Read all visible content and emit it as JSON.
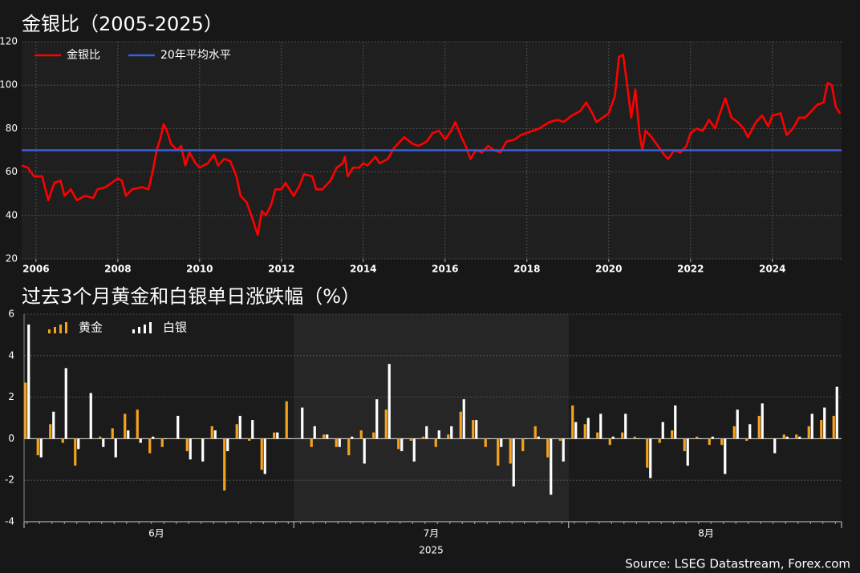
{
  "chart_data": [
    {
      "type": "line",
      "title": "金银比（2005-2025）",
      "x": [
        2005.65,
        2005.8,
        2005.95,
        2006.15,
        2006.3,
        2006.45,
        2006.6,
        2006.7,
        2006.85,
        2007.0,
        2007.2,
        2007.4,
        2007.5,
        2007.7,
        2007.85,
        2008.0,
        2008.1,
        2008.2,
        2008.35,
        2008.6,
        2008.75,
        2008.85,
        2008.95,
        2009.05,
        2009.12,
        2009.2,
        2009.3,
        2009.45,
        2009.55,
        2009.65,
        2009.75,
        2009.9,
        2010.0,
        2010.2,
        2010.35,
        2010.45,
        2010.6,
        2010.75,
        2010.9,
        2011.0,
        2011.15,
        2011.3,
        2011.42,
        2011.52,
        2011.62,
        2011.75,
        2011.85,
        2012.0,
        2012.1,
        2012.3,
        2012.45,
        2012.55,
        2012.75,
        2012.85,
        2013.0,
        2013.1,
        2013.2,
        2013.35,
        2013.5,
        2013.55,
        2013.62,
        2013.75,
        2013.9,
        2014.0,
        2014.1,
        2014.3,
        2014.4,
        2014.6,
        2014.75,
        2014.9,
        2015.0,
        2015.2,
        2015.35,
        2015.55,
        2015.7,
        2015.85,
        2016.0,
        2016.15,
        2016.25,
        2016.4,
        2016.5,
        2016.62,
        2016.75,
        2016.9,
        2017.05,
        2017.2,
        2017.35,
        2017.5,
        2017.7,
        2017.85,
        2018.0,
        2018.15,
        2018.3,
        2018.55,
        2018.75,
        2018.9,
        2019.1,
        2019.3,
        2019.45,
        2019.6,
        2019.7,
        2019.85,
        2020.0,
        2020.15,
        2020.25,
        2020.35,
        2020.45,
        2020.55,
        2020.65,
        2020.75,
        2020.82,
        2020.9,
        2021.05,
        2021.2,
        2021.35,
        2021.45,
        2021.6,
        2021.75,
        2021.9,
        2022.0,
        2022.15,
        2022.3,
        2022.45,
        2022.6,
        2022.7,
        2022.85,
        2023.0,
        2023.15,
        2023.3,
        2023.4,
        2023.6,
        2023.75,
        2023.9,
        2024.0,
        2024.2,
        2024.35,
        2024.5,
        2024.65,
        2024.8,
        2024.95,
        2025.1,
        2025.25,
        2025.35,
        2025.45,
        2025.55,
        2025.65
      ],
      "series": [
        {
          "name": "金银比",
          "color": "#ff0000",
          "values": [
            63,
            62,
            58,
            58,
            47,
            55,
            56,
            49,
            52,
            47,
            49,
            48,
            52,
            53,
            55,
            57,
            56,
            49,
            52,
            53,
            52,
            60,
            70,
            76,
            82,
            79,
            73,
            70,
            72,
            63,
            69,
            64,
            62,
            64,
            68,
            63,
            66,
            65,
            58,
            49,
            46,
            38,
            31,
            42,
            40,
            45,
            52,
            52,
            55,
            49,
            54,
            59,
            58,
            52,
            52,
            54,
            56,
            62,
            64,
            67,
            58,
            62,
            62,
            64,
            63,
            67,
            64,
            66,
            71,
            74,
            76,
            73,
            72,
            74,
            78,
            79,
            75,
            79,
            83,
            76,
            72,
            66,
            70,
            69,
            72,
            70,
            69,
            74,
            75,
            77,
            78,
            79,
            80,
            83,
            84,
            83,
            86,
            88,
            92,
            87,
            83,
            85,
            87,
            95,
            113,
            114,
            100,
            85,
            98,
            78,
            70,
            79,
            76,
            72,
            68,
            66,
            70,
            69,
            72,
            78,
            80,
            79,
            84,
            80,
            86,
            94,
            85,
            83,
            80,
            76,
            83,
            86,
            81,
            86,
            87,
            77,
            80,
            85,
            85,
            88,
            91,
            92,
            101,
            100,
            90,
            87
          ]
        },
        {
          "name": "20年平均水平",
          "color": "#3a5fd9",
          "x": [
            2005.65,
            2025.69
          ],
          "values": [
            70,
            70
          ]
        }
      ],
      "xlim": [
        2005.65,
        2025.69
      ],
      "xticks": [
        2006,
        2008,
        2010,
        2012,
        2014,
        2016,
        2018,
        2020,
        2022,
        2024
      ],
      "ylim": [
        20,
        120
      ],
      "yticks": [
        20,
        40,
        60,
        80,
        100,
        120
      ],
      "grid": true,
      "legend": "upper left"
    },
    {
      "type": "bar",
      "title": "过去3个月黄金和白银单日涨跌幅（%）",
      "categories": [
        null,
        null,
        null,
        null,
        null,
        null,
        null,
        null,
        null,
        null,
        null,
        null,
        null,
        null,
        null,
        null,
        null,
        null,
        null,
        null,
        null,
        null,
        null,
        null,
        null,
        null,
        null,
        null,
        null,
        null,
        null,
        null,
        null,
        null,
        null,
        null,
        null,
        null,
        null,
        null,
        null,
        null,
        null,
        null,
        null,
        null,
        null,
        null,
        null,
        null,
        null,
        null,
        null,
        null,
        null,
        null,
        null,
        null,
        null,
        null,
        null,
        null,
        null,
        null,
        null,
        null
      ],
      "series": [
        {
          "name": "黄金",
          "color": "#f5a31f",
          "values": [
            2.7,
            -0.8,
            0.7,
            -0.2,
            -1.3,
            0,
            0.1,
            0.5,
            1.2,
            1.4,
            -0.7,
            -0.4,
            0,
            -0.6,
            0,
            0.6,
            -2.5,
            0.7,
            -0.1,
            -1.5,
            0.3,
            1.8,
            0,
            -0.4,
            0.2,
            -0.4,
            -0.8,
            0.4,
            0.3,
            1.4,
            -0.5,
            -0.1,
            0.1,
            -0.4,
            0.2,
            1.3,
            0.9,
            -0.4,
            -1.3,
            -1.2,
            -0.6,
            0.6,
            -0.9,
            -0.1,
            1.6,
            0.7,
            0.3,
            -0.3,
            0.3,
            0.1,
            -1.4,
            -0.2,
            0.4,
            -0.6,
            0.1,
            -0.3,
            -0.3,
            0.6,
            -0.1,
            1.1,
            0,
            0.2,
            0.2,
            0.6,
            0.9,
            1.1
          ]
        },
        {
          "name": "白银",
          "color": "#ffffff",
          "values": [
            5.5,
            -0.9,
            1.3,
            3.4,
            -0.5,
            2.2,
            -0.4,
            -0.9,
            0.4,
            -0.2,
            0.1,
            0,
            1.1,
            -1.0,
            -1.1,
            0.4,
            -0.6,
            1.1,
            0.9,
            -1.7,
            0.3,
            0,
            1.5,
            0.6,
            0.2,
            -0.4,
            0.1,
            -1.2,
            1.9,
            3.6,
            -0.6,
            -1.1,
            0.6,
            0.4,
            0.6,
            1.9,
            0.9,
            0,
            -0.4,
            -2.3,
            0,
            0.1,
            -2.7,
            -1.1,
            0.8,
            1.0,
            1.2,
            0.1,
            1.2,
            0,
            -1.9,
            0.8,
            1.6,
            -1.3,
            0,
            0.1,
            -1.7,
            1.4,
            0.7,
            1.7,
            -0.7,
            0.1,
            0.1,
            1.2,
            1.5,
            2.5
          ]
        }
      ],
      "xticks": [
        {
          "value": 10.4,
          "label": "6月"
        },
        {
          "value": 32.5,
          "label": "7月"
        },
        {
          "value": 54.6,
          "label": "8月"
        }
      ],
      "xlabel": "2025",
      "ylim": [
        -4,
        6
      ],
      "yticks": [
        -4,
        -2,
        0,
        2,
        4,
        6
      ],
      "grid": true,
      "legend": "upper left"
    }
  ],
  "source": "Source: LSEG Datastream, Forex.com"
}
